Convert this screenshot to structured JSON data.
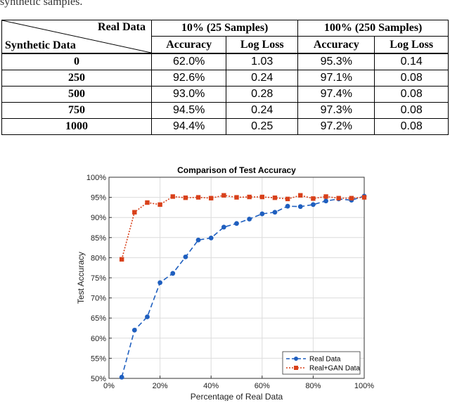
{
  "caption_fragment": "synthetic samples.",
  "table": {
    "corner_top": "Real Data",
    "corner_bottom": "Synthetic Data",
    "groups": [
      "10% (25 Samples)",
      "100% (250 Samples)"
    ],
    "subheaders": [
      "Accuracy",
      "Log Loss",
      "Accuracy",
      "Log Loss"
    ],
    "rows": [
      {
        "label": "0",
        "cells": [
          "62.0%",
          "1.03",
          "95.3%",
          "0.14"
        ]
      },
      {
        "label": "250",
        "cells": [
          "92.6%",
          "0.24",
          "97.1%",
          "0.08"
        ]
      },
      {
        "label": "500",
        "cells": [
          "93.0%",
          "0.28",
          "97.4%",
          "0.08"
        ]
      },
      {
        "label": "750",
        "cells": [
          "94.5%",
          "0.24",
          "97.3%",
          "0.08"
        ]
      },
      {
        "label": "1000",
        "cells": [
          "94.4%",
          "0.25",
          "97.2%",
          "0.08"
        ]
      }
    ]
  },
  "chart_data": {
    "type": "line",
    "title": "Comparison of Test Accuracy",
    "xlabel": "Percentage of Real Data",
    "ylabel": "Test Accuracy",
    "xlim": [
      0,
      100
    ],
    "ylim": [
      50,
      100
    ],
    "xticks": [
      0,
      20,
      40,
      60,
      80,
      100
    ],
    "xtick_labels": [
      "0%",
      "20%",
      "40%",
      "60%",
      "80%",
      "100%"
    ],
    "yticks": [
      50,
      55,
      60,
      65,
      70,
      75,
      80,
      85,
      90,
      95,
      100
    ],
    "ytick_labels": [
      "50%",
      "55%",
      "60%",
      "65%",
      "70%",
      "75%",
      "80%",
      "85%",
      "90%",
      "95%",
      "100%"
    ],
    "grid": true,
    "legend_position": "bottom-right",
    "x": [
      5,
      10,
      15,
      20,
      25,
      30,
      35,
      40,
      45,
      50,
      55,
      60,
      65,
      70,
      75,
      80,
      85,
      90,
      95,
      100
    ],
    "series": [
      {
        "name": "Real Data",
        "color": "#1f5fbf",
        "style": "dashed",
        "marker": "circle",
        "values": [
          50.3,
          62.0,
          65.3,
          73.8,
          76.1,
          80.2,
          84.4,
          84.9,
          87.6,
          88.5,
          89.6,
          90.9,
          91.3,
          92.8,
          92.7,
          93.2,
          94.1,
          94.6,
          94.3,
          95.3
        ]
      },
      {
        "name": "Real+GAN Data",
        "color": "#d8401a",
        "style": "dotted",
        "marker": "square",
        "values": [
          79.6,
          91.3,
          93.7,
          93.2,
          95.2,
          94.9,
          95.0,
          94.8,
          95.5,
          95.0,
          95.1,
          95.1,
          94.9,
          94.6,
          95.5,
          94.7,
          95.2,
          94.8,
          94.8,
          95.0
        ]
      }
    ]
  }
}
